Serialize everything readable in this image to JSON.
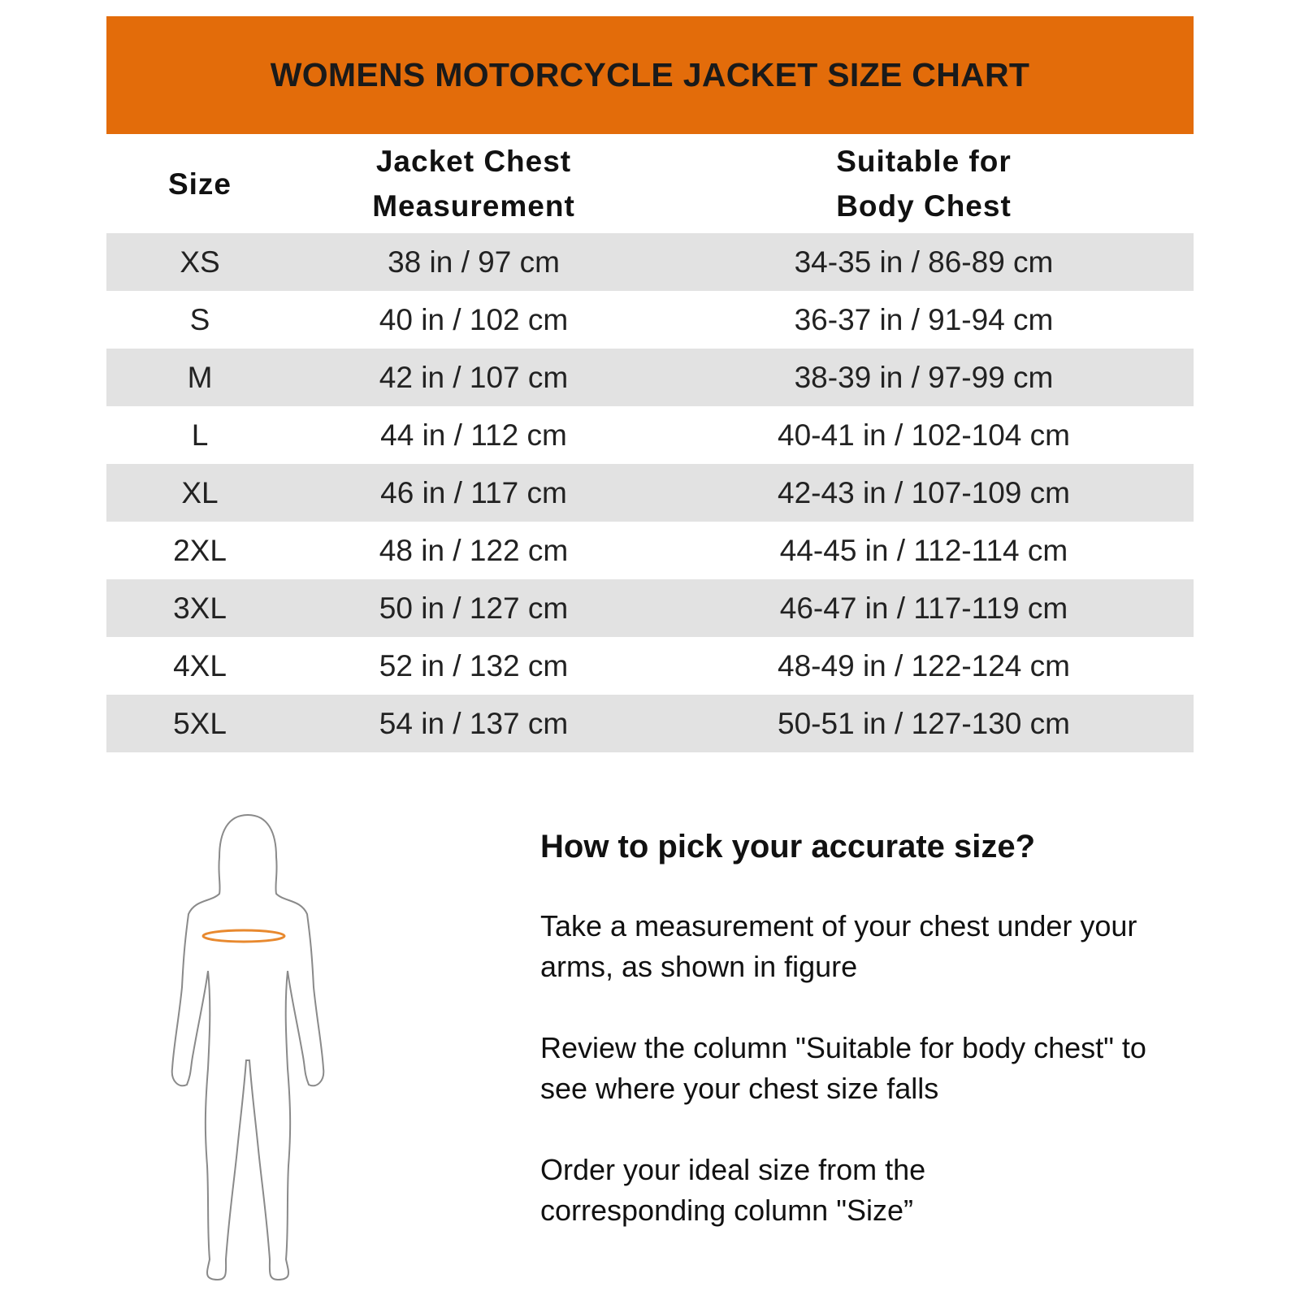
{
  "title": "WOMENS MOTORCYCLE JACKET SIZE CHART",
  "colors": {
    "banner": "#E36C0A",
    "row_alt": "#E2E2E2",
    "chest_line": "#E8892F"
  },
  "table": {
    "headers": {
      "size": "Size",
      "jacket_1": "Jacket Chest",
      "jacket_2": "Measurement",
      "body_1": "Suitable for",
      "body_2": "Body Chest"
    },
    "rows": [
      {
        "size": "XS",
        "jacket": "38 in / 97 cm",
        "body": "34-35 in / 86-89 cm"
      },
      {
        "size": "S",
        "jacket": "40 in / 102 cm",
        "body": "36-37 in / 91-94 cm"
      },
      {
        "size": "M",
        "jacket": "42 in / 107 cm",
        "body": "38-39 in / 97-99 cm"
      },
      {
        "size": "L",
        "jacket": "44 in / 112 cm",
        "body": "40-41 in / 102-104 cm"
      },
      {
        "size": "XL",
        "jacket": "46 in / 117 cm",
        "body": "42-43 in / 107-109 cm"
      },
      {
        "size": "2XL",
        "jacket": "48 in / 122 cm",
        "body": "44-45 in / 112-114 cm"
      },
      {
        "size": "3XL",
        "jacket": "50 in / 127 cm",
        "body": "46-47 in / 117-119 cm"
      },
      {
        "size": "4XL",
        "jacket": "52 in / 132 cm",
        "body": "48-49 in / 122-124 cm"
      },
      {
        "size": "5XL",
        "jacket": "54 in / 137 cm",
        "body": "50-51 in / 127-130 cm"
      }
    ]
  },
  "guide": {
    "heading": "How to pick your accurate size?",
    "steps": [
      "Take a measurement of your chest under your arms, as shown in figure",
      "Review the column \"Suitable for body chest\" to see where your chest size falls",
      "Order your ideal size from the corresponding column \"Size”"
    ]
  },
  "figure_icon": "woman-silhouette-chest-measure-icon"
}
